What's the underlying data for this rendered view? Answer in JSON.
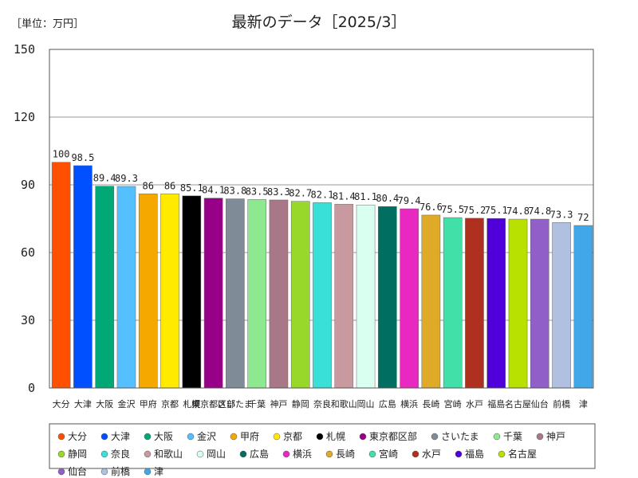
{
  "chart_data": {
    "type": "bar",
    "title": "最新のデータ［2025/3］",
    "unit_label": "［単位：万円］",
    "ylim": [
      0,
      150
    ],
    "yticks": [
      0,
      30,
      60,
      90,
      120,
      150
    ],
    "grid": true,
    "legend_position": "bottom",
    "categories": [
      "大分",
      "大津",
      "大阪",
      "金沢",
      "甲府",
      "京都",
      "札幌",
      "東京都区部",
      "さいたま",
      "千葉",
      "神戸",
      "静岡",
      "奈良",
      "和歌山",
      "岡山",
      "広島",
      "横浜",
      "長崎",
      "宮崎",
      "水戸",
      "福島",
      "名古屋",
      "仙台",
      "前橋",
      "津"
    ],
    "values": [
      100,
      98.5,
      89.4,
      89.3,
      86,
      86,
      85.1,
      84.1,
      83.8,
      83.5,
      83.3,
      82.7,
      82.1,
      81.4,
      81.1,
      80.4,
      79.4,
      76.6,
      75.5,
      75.2,
      75.1,
      74.8,
      74.8,
      73.3,
      72
    ],
    "value_labels": [
      "100",
      "98.5",
      "89.4",
      "89.3",
      "86",
      "86",
      "85.1",
      "84.1",
      "83.8",
      "83.5",
      "83.3",
      "82.7",
      "82.1",
      "81.4",
      "81.1",
      "80.4",
      "79.4",
      "76.6",
      "75.5",
      "75.2",
      "75.1",
      "74.8",
      "74.8",
      "73.3",
      "72"
    ],
    "colors": [
      "#ff5000",
      "#0050ff",
      "#00a878",
      "#55c0ff",
      "#f5a800",
      "#ffea00",
      "#000000",
      "#990088",
      "#7f8c98",
      "#8ee890",
      "#a87888",
      "#98d828",
      "#38e0d8",
      "#c89aa0",
      "#d8fff0",
      "#006e60",
      "#e828c0",
      "#deaa28",
      "#40e0a8",
      "#b03020",
      "#5000d8",
      "#b8e000",
      "#9060c8",
      "#b0c0e0",
      "#40a8e8"
    ]
  }
}
